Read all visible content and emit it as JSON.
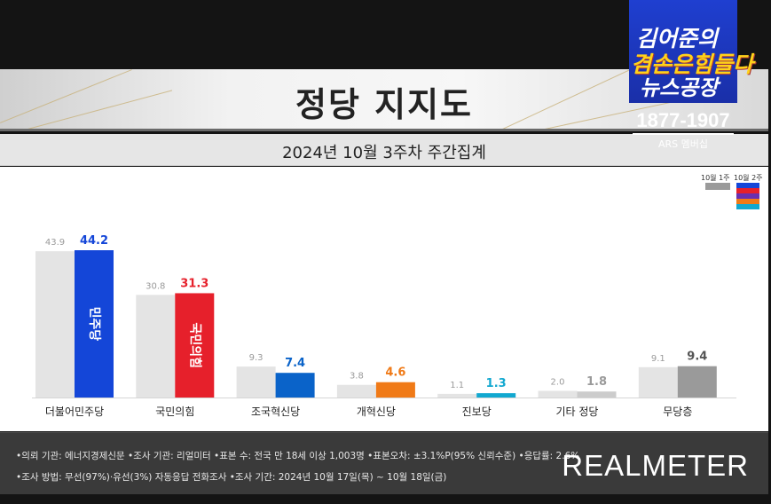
{
  "header": {
    "title": "정당 지지도",
    "subtitle": "2024년 10월 3주차 주간집계"
  },
  "brand": {
    "line1": "김어준의",
    "line2": "겸손은힘들다",
    "line3": "뉴스공장",
    "phone": "1877-1907",
    "ars": "ARS 멤버십"
  },
  "legend": {
    "prev_label": "10월 1주",
    "curr_label": "10월 2주"
  },
  "chart_data": {
    "type": "bar",
    "categories": [
      "더불어민주당",
      "국민의힘",
      "조국혁신당",
      "개혁신당",
      "진보당",
      "기타 정당",
      "무당층"
    ],
    "series": [
      {
        "name": "10월 1주",
        "values": [
          43.9,
          30.8,
          9.3,
          3.8,
          1.1,
          2.0,
          9.1
        ]
      },
      {
        "name": "10월 2주",
        "values": [
          44.2,
          31.3,
          7.4,
          4.6,
          1.3,
          1.8,
          9.4
        ]
      }
    ],
    "ylim": [
      0,
      44.2
    ],
    "colors": {
      "previous": "#e4e4e4",
      "current": [
        "#1446d8",
        "#e6202b",
        "#0a63c9",
        "#f07a17",
        "#12a8d0",
        "#cccccc",
        "#9a9a9a"
      ],
      "current_label": [
        "#1446d8",
        "#e6202b",
        "#0a63c9",
        "#f07a17",
        "#12a8d0",
        "#9a9a9a",
        "#555555"
      ],
      "previous_label": "#9a9a9a"
    },
    "bar_text": [
      "민주당",
      "국민의힘"
    ],
    "grid": false,
    "legend_position": "top-right"
  },
  "footer": {
    "line1": "•의뢰 기관: 에너지경제신문  •조사 기관: 리얼미터  •표본 수: 전국 만 18세 이상 1,003명  •표본오차: ±3.1%P(95% 신뢰수준)  •응답률: 2.6%",
    "line2": "•조사 방법: 무선(97%)·유선(3%) 자동응답 전화조사  •조사 기간: 2024년 10월 17일(목) ~ 10월 18일(금)",
    "logo": "REALMETER"
  }
}
